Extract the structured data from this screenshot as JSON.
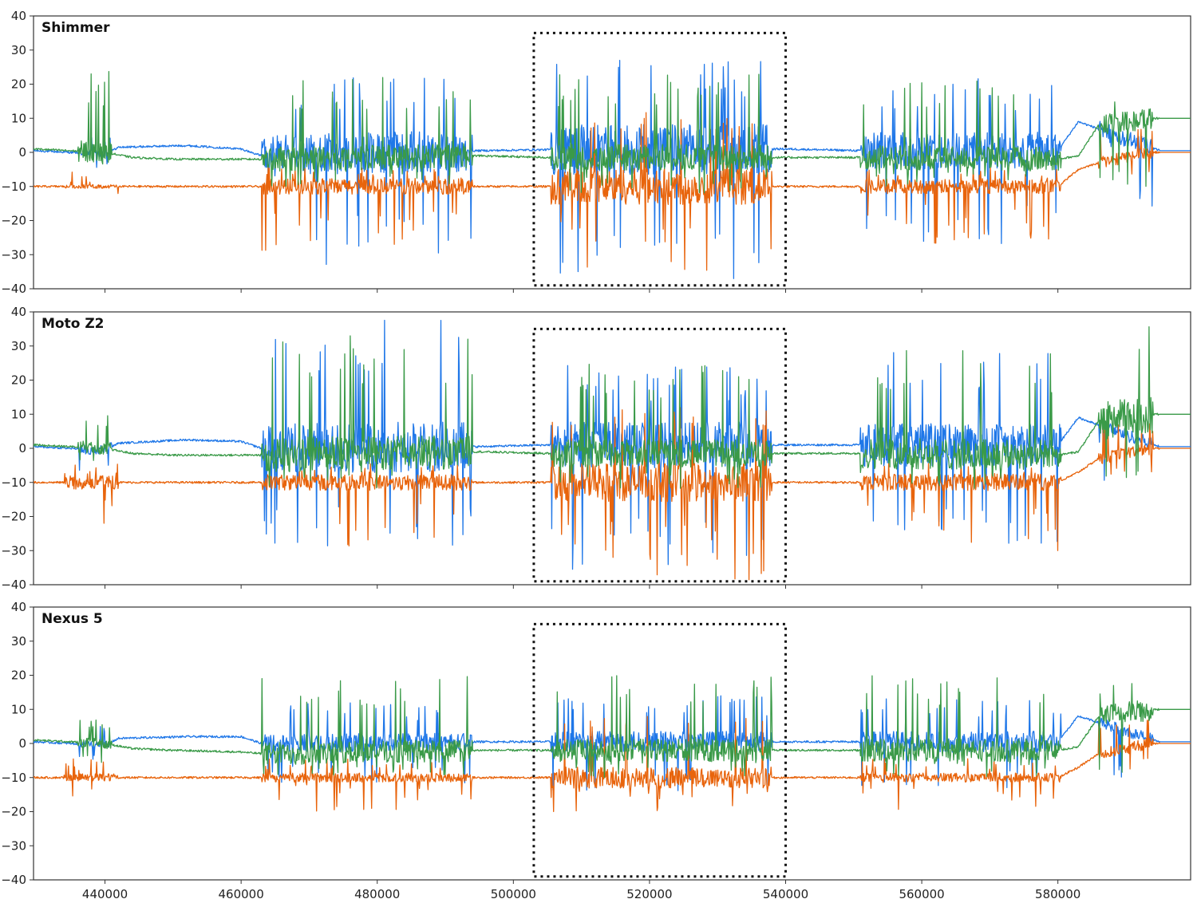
{
  "chart_data": [
    {
      "type": "line",
      "title": "Shimmer",
      "xlim": [
        429500,
        599500
      ],
      "ylim": [
        -40,
        40
      ],
      "xticks": [
        440000,
        460000,
        480000,
        500000,
        520000,
        540000,
        560000,
        580000
      ],
      "yticks": [
        40,
        30,
        20,
        10,
        0,
        -10,
        -20,
        -30,
        -40
      ],
      "xtick_labels_visible": false,
      "highlight_region": {
        "x": [
          503000,
          540000
        ],
        "y": [
          -39,
          35
        ]
      },
      "series": [
        {
          "color": "#1f77e8",
          "baseline": 0,
          "segments": [
            [
              429500,
              0.5
            ],
            [
              440000,
              -0.5
            ],
            [
              442000,
              1.5
            ],
            [
              452000,
              2
            ],
            [
              460000,
              1
            ],
            [
              463000,
              -1
            ],
            [
              495000,
              0.5
            ],
            [
              505000,
              0.8
            ],
            [
              540000,
              1
            ],
            [
              551000,
              0.5
            ],
            [
              580000,
              0.5
            ],
            [
              583000,
              9
            ],
            [
              595000,
              0.5
            ]
          ],
          "bursts": [
            {
              "x": [
                436000,
                441000
              ],
              "pos": 5,
              "neg": -5
            },
            {
              "x": [
                463000,
                494000
              ],
              "pos": 22,
              "neg": -33
            },
            {
              "x": [
                505500,
                538000
              ],
              "pos": 27,
              "neg": -40
            },
            {
              "x": [
                551000,
                580500
              ],
              "pos": 22,
              "neg": -27
            },
            {
              "x": [
                586000,
                594000
              ],
              "pos": 3,
              "neg": -19
            }
          ]
        },
        {
          "color": "#e8640c",
          "baseline": -10,
          "segments": [
            [
              429500,
              -10
            ],
            [
              463000,
              -10
            ],
            [
              505000,
              -10
            ],
            [
              551000,
              -10
            ],
            [
              580000,
              -10
            ],
            [
              583000,
              -5
            ],
            [
              586000,
              -3
            ],
            [
              594000,
              0
            ]
          ],
          "bursts": [
            {
              "x": [
                434000,
                442000
              ],
              "pos": -8,
              "neg": -13
            },
            {
              "x": [
                463000,
                494000
              ],
              "pos": -8,
              "neg": -29
            },
            {
              "x": [
                505500,
                538000
              ],
              "pos": 12,
              "neg": -36
            },
            {
              "x": [
                551000,
                580500
              ],
              "pos": -8,
              "neg": -27
            },
            {
              "x": [
                586000,
                594000
              ],
              "pos": 8,
              "neg": -8
            }
          ]
        },
        {
          "color": "#3a9a48",
          "baseline": 0,
          "segments": [
            [
              429500,
              1
            ],
            [
              440000,
              0
            ],
            [
              444000,
              -1.5
            ],
            [
              450000,
              -2
            ],
            [
              460000,
              -2
            ],
            [
              463000,
              -2
            ],
            [
              495000,
              -1
            ],
            [
              505000,
              -1.5
            ],
            [
              540000,
              -1.5
            ],
            [
              551000,
              -1.5
            ],
            [
              580000,
              -2
            ],
            [
              583000,
              -1
            ],
            [
              586000,
              8
            ],
            [
              594000,
              10
            ],
            [
              599500,
              10
            ]
          ],
          "bursts": [
            {
              "x": [
                436000,
                441000
              ],
              "pos": 24,
              "neg": -4
            },
            {
              "x": [
                463000,
                494000
              ],
              "pos": 23,
              "neg": -10
            },
            {
              "x": [
                505500,
                538000
              ],
              "pos": 23,
              "neg": -12
            },
            {
              "x": [
                551000,
                580500
              ],
              "pos": 22,
              "neg": -10
            },
            {
              "x": [
                586000,
                594000
              ],
              "pos": 18,
              "neg": -10
            }
          ]
        }
      ]
    },
    {
      "type": "line",
      "title": "Moto Z2",
      "xlim": [
        429500,
        599500
      ],
      "ylim": [
        -40,
        40
      ],
      "xticks": [
        440000,
        460000,
        480000,
        500000,
        520000,
        540000,
        560000,
        580000
      ],
      "yticks": [
        40,
        30,
        20,
        10,
        0,
        -10,
        -20,
        -30,
        -40
      ],
      "xtick_labels_visible": false,
      "highlight_region": {
        "x": [
          503000,
          540000
        ],
        "y": [
          -39,
          35
        ]
      },
      "series": [
        {
          "color": "#1f77e8",
          "baseline": 0,
          "segments": [
            [
              429500,
              0.5
            ],
            [
              440000,
              -0.5
            ],
            [
              442000,
              1.5
            ],
            [
              452000,
              2.5
            ],
            [
              460000,
              2
            ],
            [
              463000,
              0
            ],
            [
              495000,
              0.5
            ],
            [
              505000,
              1
            ],
            [
              540000,
              1
            ],
            [
              551000,
              1
            ],
            [
              580000,
              1
            ],
            [
              583000,
              9
            ],
            [
              595000,
              0.5
            ],
            [
              599500,
              0.5
            ]
          ],
          "bursts": [
            {
              "x": [
                436000,
                441000
              ],
              "pos": 7,
              "neg": -7
            },
            {
              "x": [
                463000,
                494000
              ],
              "pos": 38,
              "neg": -29
            },
            {
              "x": [
                505500,
                538000
              ],
              "pos": 25,
              "neg": -36
            },
            {
              "x": [
                551000,
                580500
              ],
              "pos": 29,
              "neg": -28
            },
            {
              "x": [
                586000,
                594000
              ],
              "pos": 3,
              "neg": -13
            }
          ]
        },
        {
          "color": "#e8640c",
          "baseline": -10,
          "segments": [
            [
              429500,
              -10
            ],
            [
              463000,
              -10
            ],
            [
              505000,
              -10
            ],
            [
              551000,
              -10
            ],
            [
              580000,
              -10
            ],
            [
              583000,
              -7
            ],
            [
              586000,
              -3
            ],
            [
              594000,
              0
            ]
          ],
          "bursts": [
            {
              "x": [
                434000,
                442000
              ],
              "pos": -8,
              "neg": -26
            },
            {
              "x": [
                463000,
                494000
              ],
              "pos": -8,
              "neg": -29
            },
            {
              "x": [
                505500,
                538000
              ],
              "pos": 12,
              "neg": -39
            },
            {
              "x": [
                551000,
                580500
              ],
              "pos": -8,
              "neg": -30
            },
            {
              "x": [
                586000,
                594000
              ],
              "pos": 8,
              "neg": -8
            }
          ]
        },
        {
          "color": "#3a9a48",
          "baseline": 0,
          "segments": [
            [
              429500,
              1
            ],
            [
              440000,
              0
            ],
            [
              444000,
              -1.5
            ],
            [
              450000,
              -2
            ],
            [
              460000,
              -2
            ],
            [
              463000,
              -2
            ],
            [
              495000,
              -1
            ],
            [
              505000,
              -1.5
            ],
            [
              540000,
              -1.5
            ],
            [
              551000,
              -1.5
            ],
            [
              580000,
              -2
            ],
            [
              583000,
              -1
            ],
            [
              586000,
              8
            ],
            [
              594000,
              10
            ],
            [
              599500,
              10
            ]
          ],
          "bursts": [
            {
              "x": [
                436000,
                441000
              ],
              "pos": 11,
              "neg": -6
            },
            {
              "x": [
                463000,
                494000
              ],
              "pos": 34,
              "neg": -12
            },
            {
              "x": [
                505500,
                538000
              ],
              "pos": 25,
              "neg": -12
            },
            {
              "x": [
                551000,
                580500
              ],
              "pos": 29,
              "neg": -12
            },
            {
              "x": [
                586000,
                594000
              ],
              "pos": 40,
              "neg": -10
            }
          ]
        }
      ]
    },
    {
      "type": "line",
      "title": "Nexus 5",
      "xlim": [
        429500,
        599500
      ],
      "ylim": [
        -40,
        40
      ],
      "xticks": [
        440000,
        460000,
        480000,
        500000,
        520000,
        540000,
        560000,
        580000
      ],
      "xtick_labels": [
        "440000",
        "460000",
        "480000",
        "500000",
        "520000",
        "540000",
        "560000",
        "580000"
      ],
      "yticks": [
        40,
        30,
        20,
        10,
        0,
        -10,
        -20,
        -30,
        -40
      ],
      "xtick_labels_visible": true,
      "highlight_region": {
        "x": [
          503000,
          540000
        ],
        "y": [
          -39,
          35
        ]
      },
      "series": [
        {
          "color": "#1f77e8",
          "baseline": 0,
          "segments": [
            [
              429500,
              0.5
            ],
            [
              440000,
              -0.5
            ],
            [
              442000,
              1.5
            ],
            [
              452000,
              2
            ],
            [
              460000,
              2
            ],
            [
              463000,
              0
            ],
            [
              495000,
              0.5
            ],
            [
              505000,
              0.5
            ],
            [
              540000,
              0.5
            ],
            [
              551000,
              0.5
            ],
            [
              580000,
              0.5
            ],
            [
              583000,
              8
            ],
            [
              595000,
              0.5
            ],
            [
              599500,
              0.5
            ]
          ],
          "bursts": [
            {
              "x": [
                436000,
                441000
              ],
              "pos": 5,
              "neg": -5
            },
            {
              "x": [
                463000,
                494000
              ],
              "pos": 12,
              "neg": -12
            },
            {
              "x": [
                505500,
                538000
              ],
              "pos": 14,
              "neg": -14
            },
            {
              "x": [
                551000,
                580500
              ],
              "pos": 14,
              "neg": -14
            },
            {
              "x": [
                586000,
                594000
              ],
              "pos": 3,
              "neg": -12
            }
          ]
        },
        {
          "color": "#e8640c",
          "baseline": -10,
          "segments": [
            [
              429500,
              -10
            ],
            [
              463000,
              -10
            ],
            [
              505000,
              -10
            ],
            [
              551000,
              -10
            ],
            [
              580000,
              -10
            ],
            [
              583000,
              -7
            ],
            [
              586000,
              -3
            ],
            [
              594000,
              0
            ]
          ],
          "bursts": [
            {
              "x": [
                434000,
                442000
              ],
              "pos": -8,
              "neg": -18
            },
            {
              "x": [
                463000,
                494000
              ],
              "pos": -8,
              "neg": -20
            },
            {
              "x": [
                505500,
                538000
              ],
              "pos": 8,
              "neg": -20
            },
            {
              "x": [
                551000,
                580500
              ],
              "pos": -8,
              "neg": -20
            },
            {
              "x": [
                586000,
                594000
              ],
              "pos": 8,
              "neg": -8
            }
          ]
        },
        {
          "color": "#3a9a48",
          "baseline": 0,
          "segments": [
            [
              429500,
              1
            ],
            [
              440000,
              0
            ],
            [
              444000,
              -1.5
            ],
            [
              450000,
              -2
            ],
            [
              460000,
              -2.5
            ],
            [
              463000,
              -3
            ],
            [
              495000,
              -2
            ],
            [
              505000,
              -2
            ],
            [
              540000,
              -2
            ],
            [
              551000,
              -2
            ],
            [
              580000,
              -2
            ],
            [
              583000,
              -1
            ],
            [
              586000,
              8
            ],
            [
              594000,
              10
            ],
            [
              599500,
              10
            ]
          ],
          "bursts": [
            {
              "x": [
                436000,
                441000
              ],
              "pos": 7,
              "neg": -6
            },
            {
              "x": [
                463000,
                494000
              ],
              "pos": 20,
              "neg": -10
            },
            {
              "x": [
                505500,
                538000
              ],
              "pos": 20,
              "neg": -10
            },
            {
              "x": [
                551000,
                580500
              ],
              "pos": 20,
              "neg": -10
            },
            {
              "x": [
                586000,
                594000
              ],
              "pos": 19,
              "neg": -10
            }
          ]
        }
      ]
    }
  ]
}
